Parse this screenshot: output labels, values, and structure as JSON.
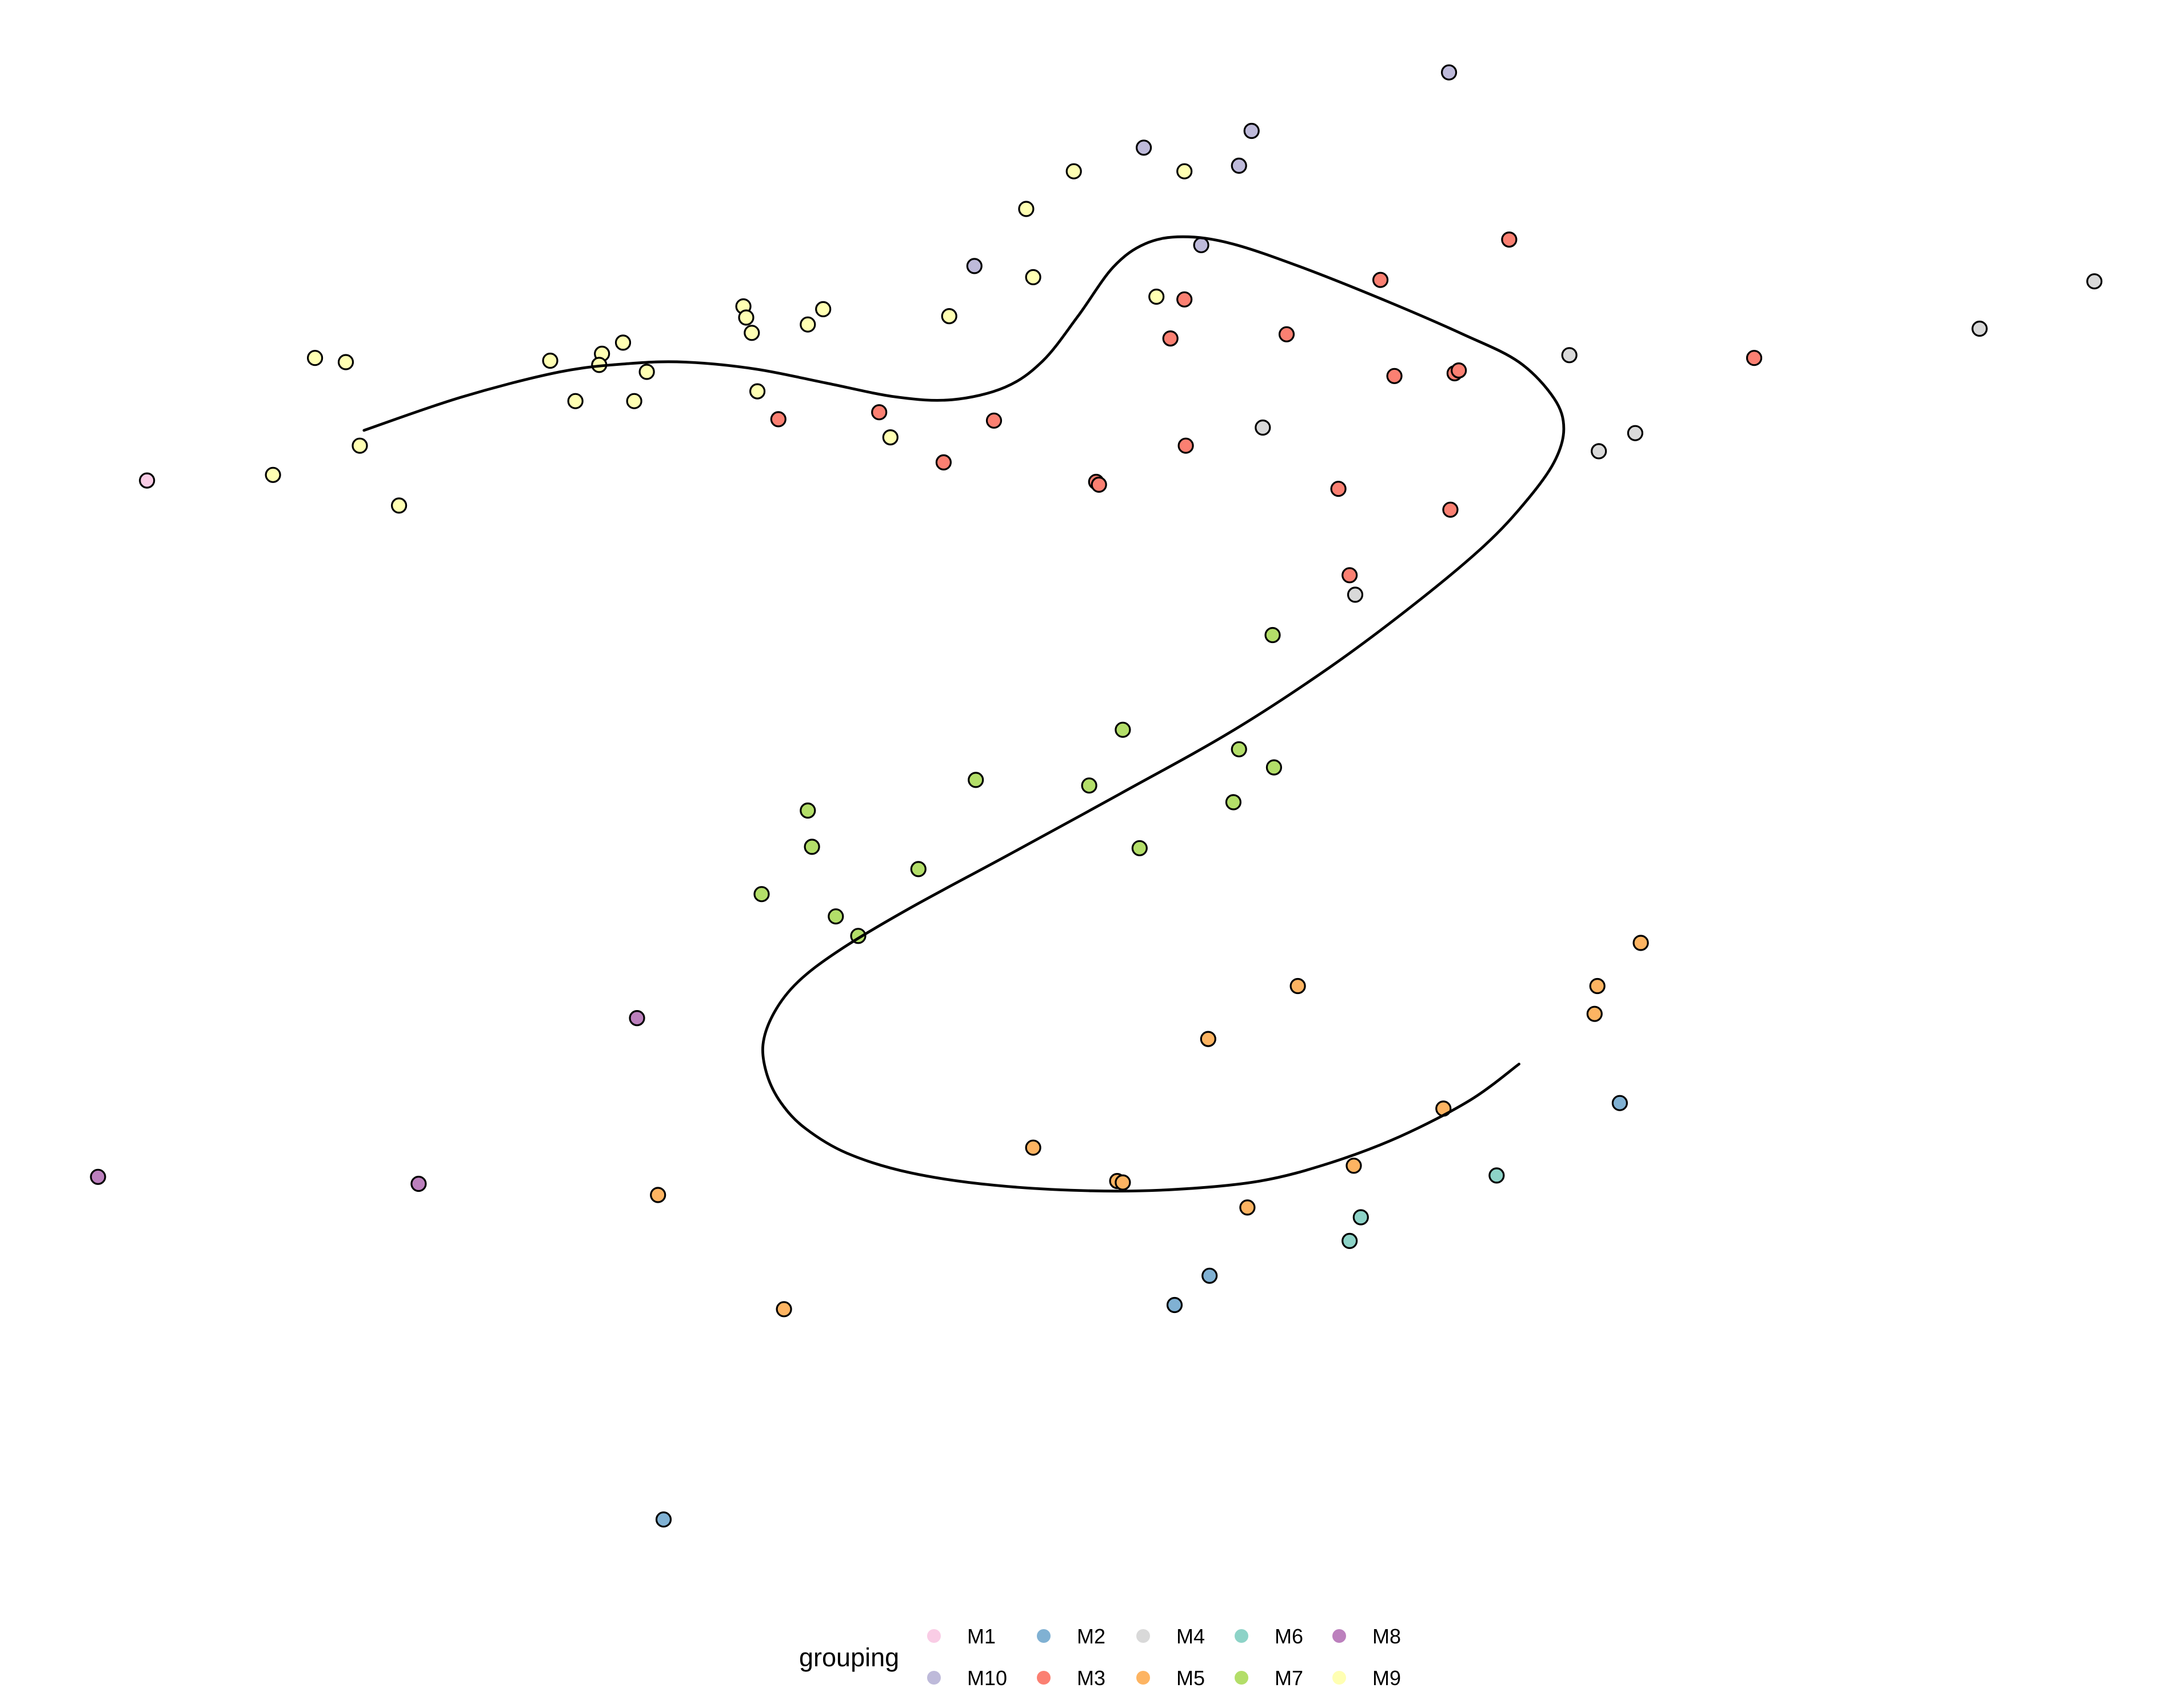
{
  "chart_data": {
    "type": "scatter",
    "title": "",
    "xlabel": "",
    "ylabel": "",
    "axes_visible": false,
    "grid": false,
    "xlim": [
      0,
      1560
    ],
    "ylim": [
      0,
      1212
    ],
    "legend": {
      "title": "grouping",
      "placement": "bottom",
      "entries": [
        {
          "key": "M1",
          "label": "M1",
          "color": "#F9CCE5"
        },
        {
          "key": "M10",
          "label": "M10",
          "color": "#BEBADA"
        },
        {
          "key": "M2",
          "label": "M2",
          "color": "#80B1D3"
        },
        {
          "key": "M3",
          "label": "M3",
          "color": "#FB8072"
        },
        {
          "key": "M4",
          "label": "M4",
          "color": "#D9D9D9"
        },
        {
          "key": "M5",
          "label": "M5",
          "color": "#FDB462"
        },
        {
          "key": "M6",
          "label": "M6",
          "color": "#8DD3C7"
        },
        {
          "key": "M7",
          "label": "M7",
          "color": "#B3DE69"
        },
        {
          "key": "M8",
          "label": "M8",
          "color": "#BC80BD"
        },
        {
          "key": "M9",
          "label": "M9",
          "color": "#FFFFB3"
        }
      ]
    },
    "series": [
      {
        "key": "M1",
        "points": [
          [
            105,
            867
          ]
        ]
      },
      {
        "key": "M10",
        "points": [
          [
            1035,
            1160
          ],
          [
            817,
            1106
          ],
          [
            894,
            1118
          ],
          [
            885,
            1093
          ],
          [
            696,
            1021
          ],
          [
            858,
            1036
          ]
        ]
      },
      {
        "key": "M2",
        "points": [
          [
            1157,
            420
          ],
          [
            864,
            296
          ],
          [
            839,
            275
          ],
          [
            474,
            121
          ]
        ]
      },
      {
        "key": "M3",
        "points": [
          [
            1078,
            1040
          ],
          [
            986,
            1011
          ],
          [
            846,
            997
          ],
          [
            919,
            972
          ],
          [
            836,
            969
          ],
          [
            996,
            942
          ],
          [
            1039,
            944
          ],
          [
            1042,
            946
          ],
          [
            1253,
            955
          ],
          [
            556,
            911
          ],
          [
            628,
            916
          ],
          [
            710,
            910
          ],
          [
            847,
            892
          ],
          [
            674,
            880
          ],
          [
            783,
            866
          ],
          [
            785,
            864
          ],
          [
            956,
            861
          ],
          [
            1036,
            846
          ],
          [
            964,
            799
          ]
        ]
      },
      {
        "key": "M4",
        "points": [
          [
            1496,
            1010
          ],
          [
            1414,
            976
          ],
          [
            1121,
            957
          ],
          [
            902,
            905
          ],
          [
            1168,
            901
          ],
          [
            1142,
            888
          ],
          [
            968,
            785
          ]
        ]
      },
      {
        "key": "M5",
        "points": [
          [
            1172,
            535
          ],
          [
            1141,
            504
          ],
          [
            1139,
            484
          ],
          [
            927,
            504
          ],
          [
            863,
            466
          ],
          [
            1031,
            416
          ],
          [
            738,
            388
          ],
          [
            798,
            364
          ],
          [
            802,
            363
          ],
          [
            967,
            375
          ],
          [
            891,
            345
          ],
          [
            470,
            354
          ],
          [
            560,
            272
          ]
        ]
      },
      {
        "key": "M6",
        "points": [
          [
            1069,
            368
          ],
          [
            972,
            338
          ],
          [
            964,
            321
          ]
        ]
      },
      {
        "key": "M7",
        "points": [
          [
            909,
            756
          ],
          [
            802,
            688
          ],
          [
            885,
            674
          ],
          [
            910,
            661
          ],
          [
            697,
            652
          ],
          [
            778,
            648
          ],
          [
            881,
            636
          ],
          [
            577,
            630
          ],
          [
            580,
            604
          ],
          [
            814,
            603
          ],
          [
            656,
            588
          ],
          [
            544,
            570
          ],
          [
            597,
            554
          ],
          [
            613,
            540
          ]
        ]
      },
      {
        "key": "M8",
        "points": [
          [
            455,
            481
          ],
          [
            70,
            367
          ],
          [
            299,
            362
          ]
        ]
      },
      {
        "key": "M9",
        "points": [
          [
            767,
            1089
          ],
          [
            846,
            1089
          ],
          [
            733,
            1062
          ],
          [
            738,
            1013
          ],
          [
            826,
            999
          ],
          [
            531,
            992
          ],
          [
            588,
            990
          ],
          [
            533,
            984
          ],
          [
            678,
            985
          ],
          [
            577,
            979
          ],
          [
            537,
            973
          ],
          [
            445,
            966
          ],
          [
            430,
            958
          ],
          [
            225,
            955
          ],
          [
            247,
            952
          ],
          [
            393,
            953
          ],
          [
            428,
            950
          ],
          [
            462,
            945
          ],
          [
            541,
            931
          ],
          [
            411,
            924
          ],
          [
            453,
            924
          ],
          [
            636,
            898
          ],
          [
            257,
            892
          ],
          [
            195,
            871
          ],
          [
            285,
            849
          ]
        ]
      }
    ],
    "trajectory": {
      "type": "smooth-curve",
      "points": [
        [
          260,
          903
        ],
        [
          330,
          927
        ],
        [
          400,
          945
        ],
        [
          450,
          951
        ],
        [
          490,
          952
        ],
        [
          540,
          947
        ],
        [
          590,
          937
        ],
        [
          640,
          927
        ],
        [
          680,
          925
        ],
        [
          718,
          934
        ],
        [
          745,
          953
        ],
        [
          770,
          985
        ],
        [
          795,
          1020
        ],
        [
          818,
          1037
        ],
        [
          845,
          1042
        ],
        [
          880,
          1037
        ],
        [
          930,
          1020
        ],
        [
          990,
          996
        ],
        [
          1045,
          972
        ],
        [
          1085,
          952
        ],
        [
          1110,
          926
        ],
        [
          1117,
          904
        ],
        [
          1110,
          880
        ],
        [
          1090,
          852
        ],
        [
          1060,
          820
        ],
        [
          1010,
          778
        ],
        [
          950,
          733
        ],
        [
          880,
          687
        ],
        [
          800,
          642
        ],
        [
          720,
          598
        ],
        [
          650,
          560
        ],
        [
          600,
          530
        ],
        [
          570,
          507
        ],
        [
          553,
          485
        ],
        [
          545,
          462
        ],
        [
          548,
          440
        ],
        [
          558,
          420
        ],
        [
          575,
          402
        ],
        [
          605,
          384
        ],
        [
          650,
          370
        ],
        [
          710,
          361
        ],
        [
          780,
          357
        ],
        [
          840,
          358
        ],
        [
          900,
          364
        ],
        [
          950,
          377
        ],
        [
          1000,
          396
        ],
        [
          1050,
          422
        ],
        [
          1085,
          448
        ]
      ]
    }
  }
}
